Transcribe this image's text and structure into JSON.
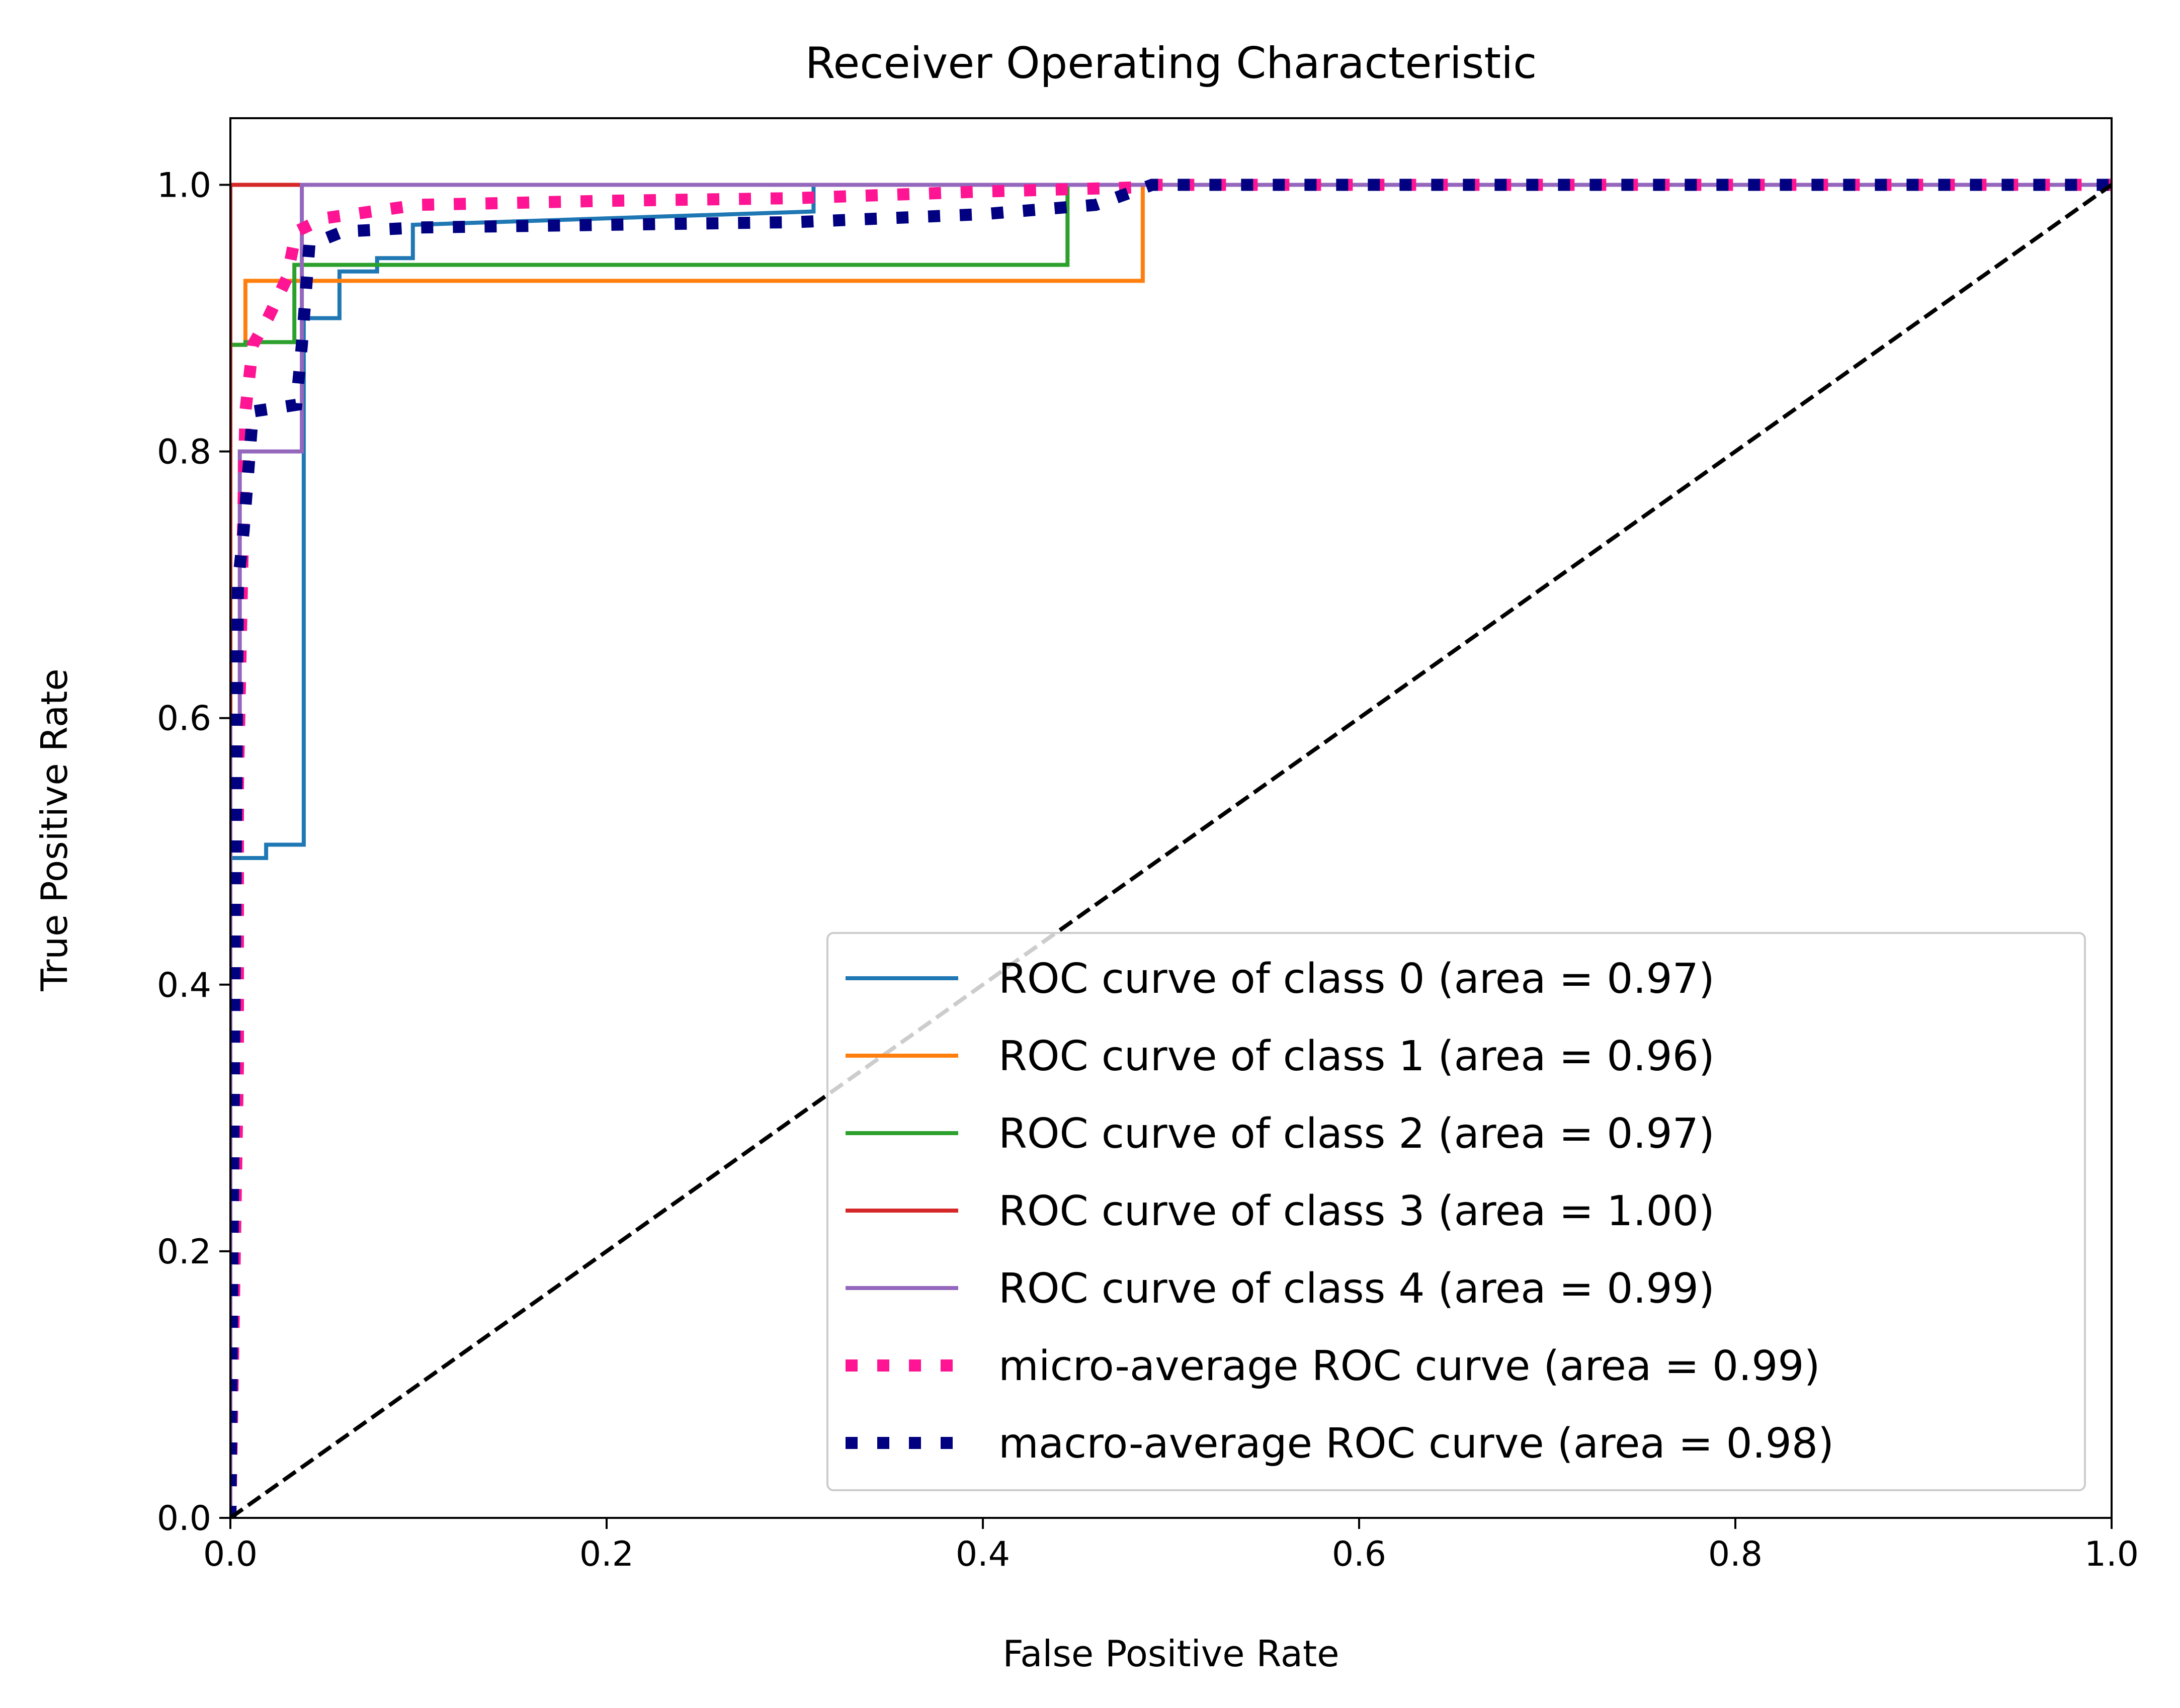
{
  "chart_data": {
    "type": "line",
    "title": "Receiver Operating Characteristic",
    "xlabel": "False Positive Rate",
    "ylabel": "True Positive Rate",
    "xlim": [
      0.0,
      1.0
    ],
    "ylim": [
      0.0,
      1.05
    ],
    "xticks": [
      0.0,
      0.2,
      0.4,
      0.6,
      0.8,
      1.0
    ],
    "xtick_labels": [
      "0.0",
      "0.2",
      "0.4",
      "0.6",
      "0.8",
      "1.0"
    ],
    "yticks": [
      0.0,
      0.2,
      0.4,
      0.6,
      0.8,
      1.0
    ],
    "ytick_labels": [
      "0.0",
      "0.2",
      "0.4",
      "0.6",
      "0.8",
      "1.0"
    ],
    "grid": false,
    "legend_position": "lower-right",
    "series": [
      {
        "name": "ROC curve of class 0 (area = 0.97)",
        "color": "#1f77b4",
        "style": "solid",
        "x": [
          0,
          0,
          0.019,
          0.019,
          0.039,
          0.039,
          0.058,
          0.058,
          0.078,
          0.078,
          0.097,
          0.097,
          0.31,
          0.31,
          1.0
        ],
        "y": [
          0,
          0.495,
          0.495,
          0.505,
          0.505,
          0.9,
          0.9,
          0.935,
          0.935,
          0.945,
          0.945,
          0.97,
          0.98,
          1.0,
          1.0
        ]
      },
      {
        "name": "ROC curve of class 1 (area = 0.96)",
        "color": "#ff7f0e",
        "style": "solid",
        "x": [
          0,
          0,
          0.008,
          0.008,
          0.485,
          0.485,
          1.0
        ],
        "y": [
          0,
          0.88,
          0.88,
          0.928,
          0.928,
          1.0,
          1.0
        ]
      },
      {
        "name": "ROC curve of class 2 (area = 0.97)",
        "color": "#2ca02c",
        "style": "solid",
        "x": [
          0,
          0,
          0.008,
          0.008,
          0.034,
          0.034,
          0.445,
          0.445,
          1.0
        ],
        "y": [
          0,
          0.88,
          0.88,
          0.882,
          0.882,
          0.94,
          0.94,
          1.0,
          1.0
        ]
      },
      {
        "name": "ROC curve of class 3 (area = 1.00)",
        "color": "#d62728",
        "style": "solid",
        "x": [
          0,
          0,
          0.038,
          1.0
        ],
        "y": [
          0,
          1.0,
          1.0,
          1.0
        ]
      },
      {
        "name": "ROC curve of class 4 (area = 0.99)",
        "color": "#9467bd",
        "style": "solid",
        "x": [
          0,
          0,
          0.005,
          0.005,
          0.009,
          0.009,
          0.038,
          0.038,
          1.0
        ],
        "y": [
          0,
          0.6,
          0.6,
          0.8,
          0.8,
          0.8,
          0.8,
          1.0,
          1.0
        ]
      },
      {
        "name": "micro-average ROC curve (area = 0.99)",
        "color": "#ff1493",
        "style": "dotted",
        "x": [
          0,
          0.004,
          0.004,
          0.008,
          0.012,
          0.02,
          0.03,
          0.035,
          0.05,
          0.1,
          0.2,
          0.3,
          0.4,
          0.48,
          0.49,
          1.0
        ],
        "y": [
          0,
          0.34,
          0.55,
          0.83,
          0.88,
          0.9,
          0.93,
          0.965,
          0.975,
          0.985,
          0.988,
          0.99,
          0.995,
          0.998,
          1.0,
          1.0
        ]
      },
      {
        "name": "macro-average ROC curve (area = 0.98)",
        "color": "#000080",
        "style": "dotted",
        "x": [
          0,
          0.004,
          0.007,
          0.012,
          0.035,
          0.038,
          0.042,
          0.06,
          0.1,
          0.2,
          0.3,
          0.4,
          0.46,
          0.49,
          1.0
        ],
        "y": [
          0,
          0.7,
          0.74,
          0.83,
          0.835,
          0.88,
          0.955,
          0.965,
          0.968,
          0.97,
          0.972,
          0.978,
          0.985,
          1.0,
          1.0
        ]
      }
    ],
    "reference_line": {
      "x": [
        0,
        1
      ],
      "y": [
        0,
        1
      ],
      "color": "#000000",
      "style": "dashed"
    }
  }
}
